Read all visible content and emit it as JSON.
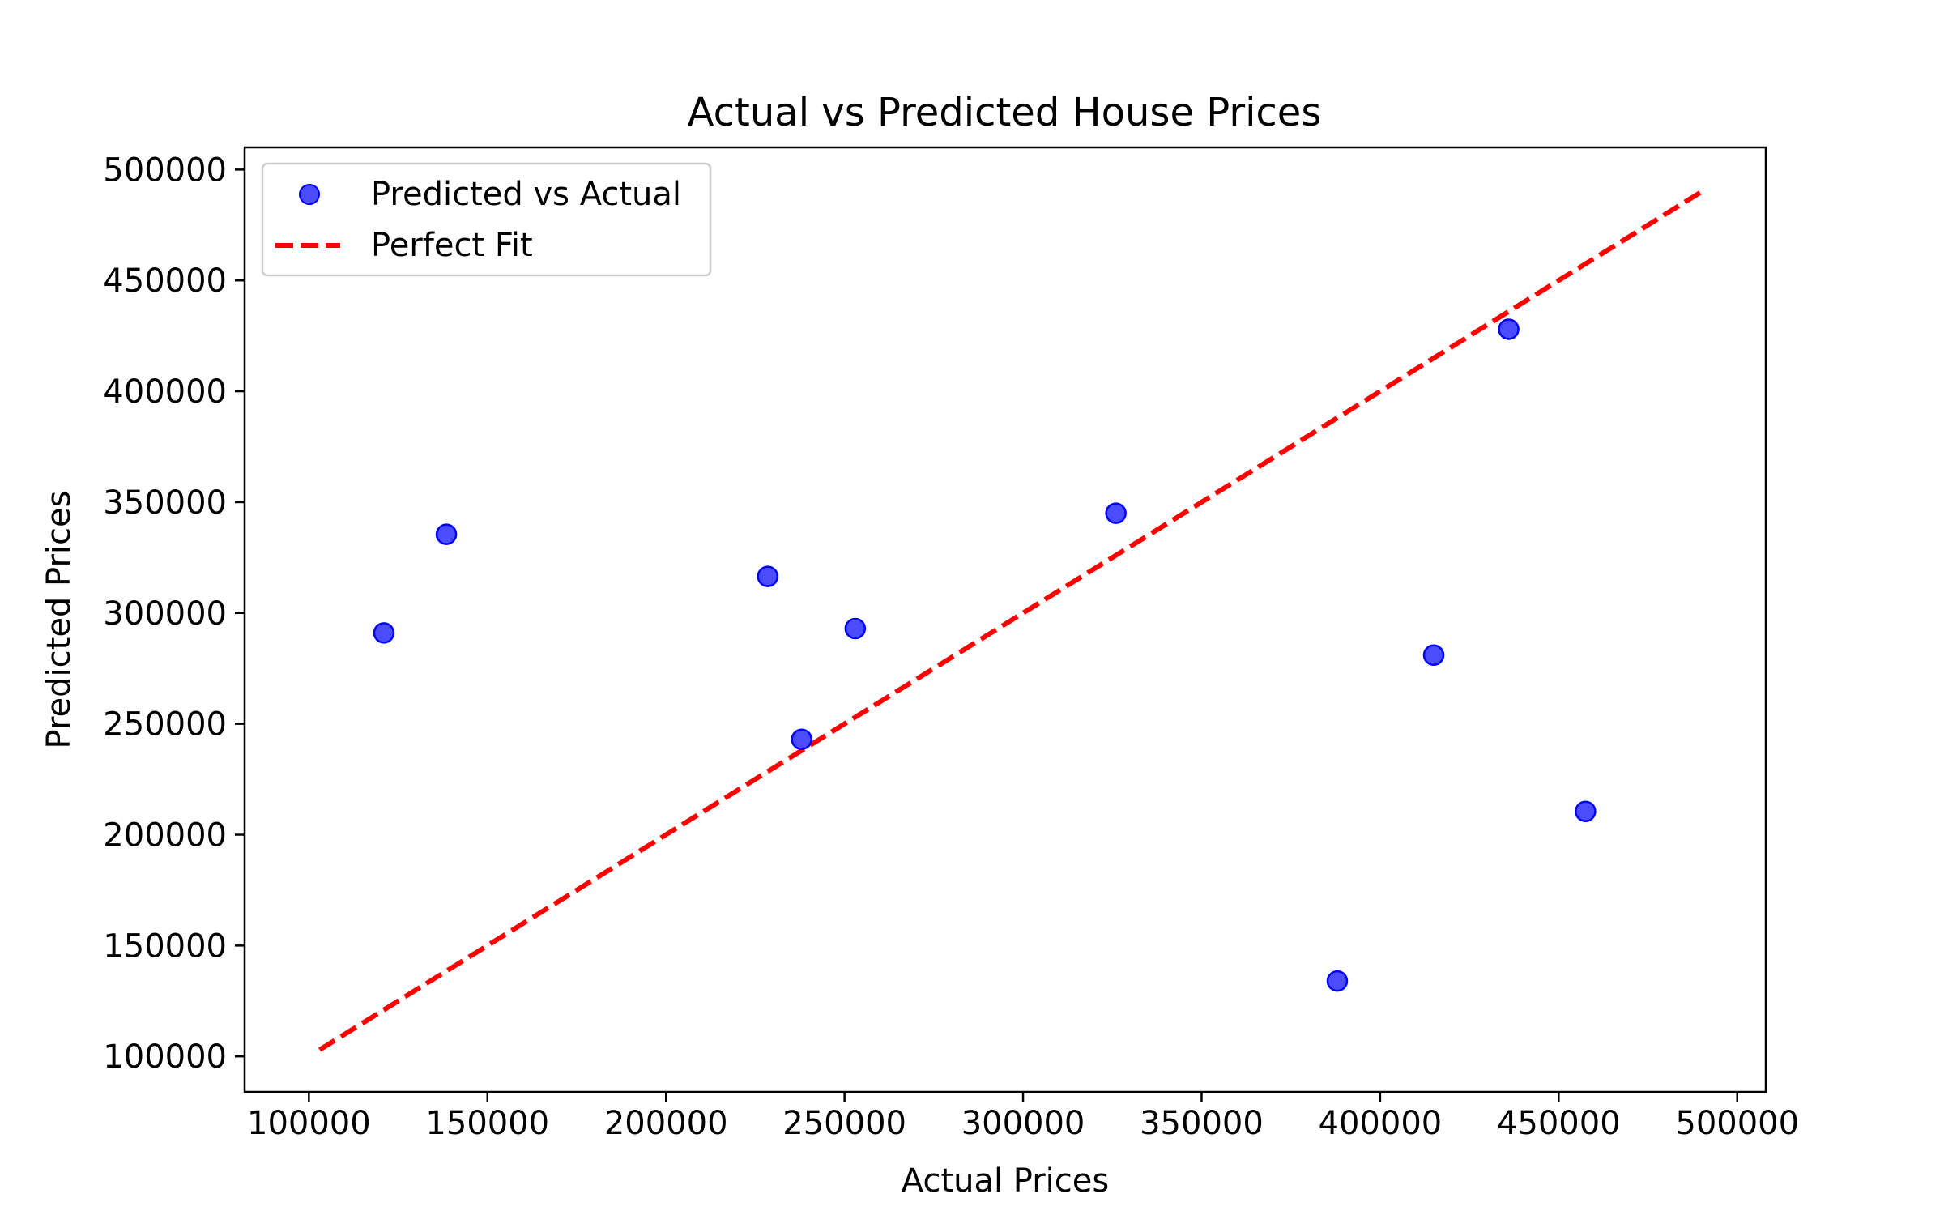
{
  "chart_data": {
    "type": "scatter",
    "title": "Actual vs Predicted House Prices",
    "xlabel": "Actual Prices",
    "ylabel": "Predicted Prices",
    "xlim": [
      82000,
      508000
    ],
    "ylim": [
      84000,
      510000
    ],
    "xticks": [
      100000,
      150000,
      200000,
      250000,
      300000,
      350000,
      400000,
      450000,
      500000
    ],
    "yticks": [
      100000,
      150000,
      200000,
      250000,
      300000,
      350000,
      400000,
      450000,
      500000
    ],
    "xtick_labels": [
      "100000",
      "150000",
      "200000",
      "250000",
      "300000",
      "350000",
      "400000",
      "450000",
      "500000"
    ],
    "ytick_labels": [
      "100000",
      "150000",
      "200000",
      "250000",
      "300000",
      "350000",
      "400000",
      "450000",
      "500000"
    ],
    "grid": false,
    "legend_position": "top-left",
    "series": [
      {
        "name": "Predicted vs Actual",
        "kind": "scatter",
        "color": "#0000ff",
        "alpha": 0.7,
        "points": [
          {
            "x": 121000,
            "y": 291000
          },
          {
            "x": 138500,
            "y": 335500
          },
          {
            "x": 228500,
            "y": 316500
          },
          {
            "x": 238000,
            "y": 243000
          },
          {
            "x": 253000,
            "y": 293000
          },
          {
            "x": 326000,
            "y": 345000
          },
          {
            "x": 388000,
            "y": 134000
          },
          {
            "x": 415000,
            "y": 281000
          },
          {
            "x": 436000,
            "y": 428000
          },
          {
            "x": 457500,
            "y": 210500
          }
        ]
      },
      {
        "name": "Perfect Fit",
        "kind": "line",
        "style": "dashed",
        "color": "#ff0000",
        "x": [
          103000,
          490000
        ],
        "y": [
          103000,
          490000
        ]
      }
    ]
  }
}
